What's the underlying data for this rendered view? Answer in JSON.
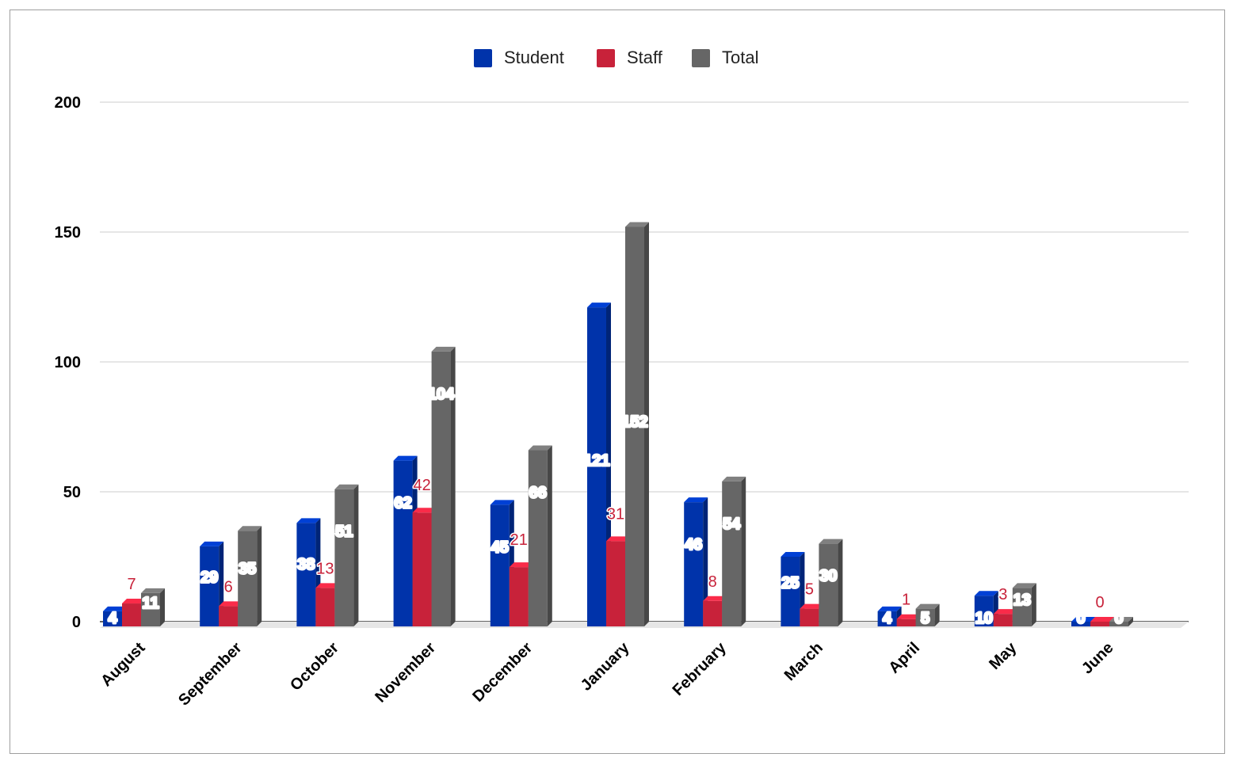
{
  "chart_data": {
    "type": "bar",
    "style": "3d-clustered-column",
    "title": "",
    "xlabel": "",
    "ylabel": "",
    "categories": [
      "August",
      "September",
      "October",
      "November",
      "December",
      "January",
      "February",
      "March",
      "April",
      "May",
      "June"
    ],
    "series": [
      {
        "name": "Student",
        "color": "#0033aa",
        "values": [
          4,
          29,
          38,
          62,
          45,
          121,
          46,
          25,
          4,
          10,
          0
        ],
        "labels": [
          "4",
          "29",
          "38",
          "62",
          "45",
          "121",
          "46",
          "25",
          "4",
          "10",
          "0"
        ]
      },
      {
        "name": "Staff",
        "color": "#c8223a",
        "values": [
          7,
          6,
          13,
          42,
          21,
          31,
          8,
          5,
          1,
          3,
          0
        ],
        "labels": [
          "7",
          "6",
          "13",
          "42",
          "21",
          "31",
          "8",
          "5",
          "1",
          "3",
          "0"
        ]
      },
      {
        "name": "Total",
        "color": "#666666",
        "values": [
          11,
          35,
          51,
          104,
          66,
          152,
          54,
          30,
          5,
          13,
          0
        ],
        "labels": [
          "11",
          "35",
          "51",
          "104",
          "66",
          "152",
          "54",
          "30",
          "5",
          "13",
          "0"
        ]
      }
    ],
    "yticks": [
      0,
      50,
      100,
      150,
      200
    ],
    "ytick_labels": [
      "0",
      "50",
      "100",
      "150",
      "200"
    ],
    "ylim": [
      0,
      200
    ],
    "grid": true,
    "legend_position": "top-center"
  }
}
